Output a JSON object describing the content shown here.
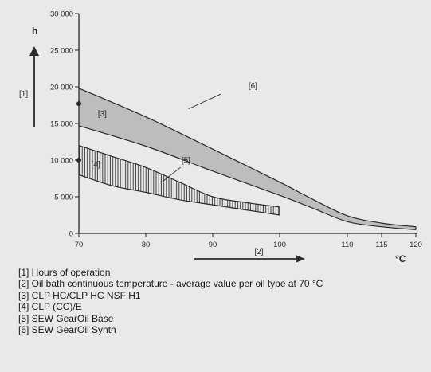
{
  "chart_data": {
    "type": "area",
    "xlabel": "°C",
    "ylabel": "h",
    "x_ticks": [
      70,
      80,
      90,
      100,
      110,
      115,
      120
    ],
    "x_tick_labels": [
      "70",
      "80",
      "90",
      "100",
      "110",
      "115",
      "120"
    ],
    "y_ticks": [
      0,
      5000,
      10000,
      15000,
      20000,
      25000,
      30000
    ],
    "y_tick_labels": [
      "0",
      "5 000",
      "10 000",
      "15 000",
      "20 000",
      "25 000",
      "30 000"
    ],
    "x_axis_note": "nonlinear scale: 70-110 evenly spaced per 10 °C, 110-120 per 5 °C",
    "ylim": [
      0,
      30000
    ],
    "grid": false,
    "arrow_labels": {
      "y": "[1]",
      "x": "[2]"
    },
    "series": [
      {
        "name": "[3]",
        "fill": "gray band",
        "upper": {
          "x": [
            70,
            80,
            90,
            100,
            105,
            110,
            115,
            120
          ],
          "y": [
            19800,
            15900,
            11500,
            7000,
            4600,
            2400,
            1400,
            900
          ]
        },
        "lower": {
          "x": [
            70,
            80,
            90,
            100,
            105,
            110,
            115,
            120
          ],
          "y": [
            14700,
            11900,
            8500,
            5200,
            3400,
            1600,
            900,
            500
          ]
        }
      },
      {
        "name": "[4]",
        "fill": "vertical hatch",
        "upper": {
          "x": [
            70,
            75,
            80,
            85,
            90,
            95,
            100
          ],
          "y": [
            12000,
            10500,
            9000,
            7000,
            5000,
            4200,
            3600
          ]
        },
        "lower": {
          "x": [
            70,
            75,
            80,
            85,
            90,
            95,
            100
          ],
          "y": [
            8000,
            6500,
            5600,
            4600,
            3900,
            3200,
            2500
          ]
        }
      }
    ],
    "curve_labels": [
      {
        "text": "[6]",
        "x": 96,
        "y": 19800
      },
      {
        "text": "[3]",
        "x": 73.5,
        "y": 16000
      },
      {
        "text": "[5]",
        "x": 86,
        "y": 9600
      },
      {
        "text": "[4]",
        "x": 72.5,
        "y": 9100
      }
    ],
    "markers": [
      {
        "x": 70,
        "y": 17700
      },
      {
        "x": 70,
        "y": 10000
      }
    ],
    "legend": [
      "[1]  Hours of operation",
      "[2]  Oil bath continuous temperature - average value per oil type at 70 °C",
      "[3]  CLP HC/CLP HC NSF H1",
      "[4]  CLP (CC)/E",
      "[5]  SEW GearOil Base",
      "[6]  SEW GearOil Synth"
    ],
    "colors": {
      "background": "#e9e9e9",
      "band": "#bdbdbd",
      "line": "#2b2b2b"
    }
  }
}
